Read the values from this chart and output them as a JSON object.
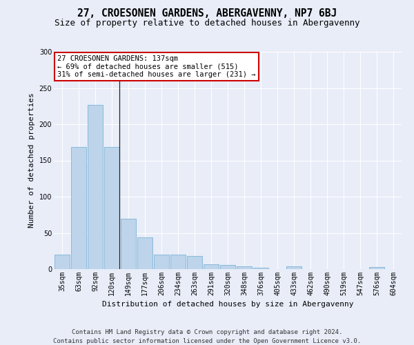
{
  "title1": "27, CROESONEN GARDENS, ABERGAVENNY, NP7 6BJ",
  "title2": "Size of property relative to detached houses in Abergavenny",
  "xlabel": "Distribution of detached houses by size in Abergavenny",
  "ylabel": "Number of detached properties",
  "categories": [
    "35sqm",
    "63sqm",
    "92sqm",
    "120sqm",
    "149sqm",
    "177sqm",
    "206sqm",
    "234sqm",
    "263sqm",
    "291sqm",
    "320sqm",
    "348sqm",
    "376sqm",
    "405sqm",
    "433sqm",
    "462sqm",
    "490sqm",
    "519sqm",
    "547sqm",
    "576sqm",
    "604sqm"
  ],
  "values": [
    20,
    169,
    227,
    169,
    70,
    44,
    20,
    20,
    18,
    7,
    6,
    4,
    2,
    0,
    4,
    0,
    0,
    0,
    0,
    3,
    0
  ],
  "bar_color": "#bdd4ea",
  "bar_edge_color": "#6aaad4",
  "property_bin_index": 3,
  "annotation_text": "27 CROESONEN GARDENS: 137sqm\n← 69% of detached houses are smaller (515)\n31% of semi-detached houses are larger (231) →",
  "annotation_box_color": "#ffffff",
  "annotation_box_edge_color": "#cc0000",
  "vline_color": "#222222",
  "footer_line1": "Contains HM Land Registry data © Crown copyright and database right 2024.",
  "footer_line2": "Contains public sector information licensed under the Open Government Licence v3.0.",
  "ylim": [
    0,
    300
  ],
  "yticks": [
    0,
    50,
    100,
    150,
    200,
    250,
    300
  ],
  "bg_color": "#e8edf8",
  "grid_color": "#ffffff",
  "title1_fontsize": 10.5,
  "title2_fontsize": 9,
  "axis_label_fontsize": 8,
  "tick_fontsize": 7,
  "annotation_fontsize": 7.5,
  "footer_fontsize": 6.5
}
